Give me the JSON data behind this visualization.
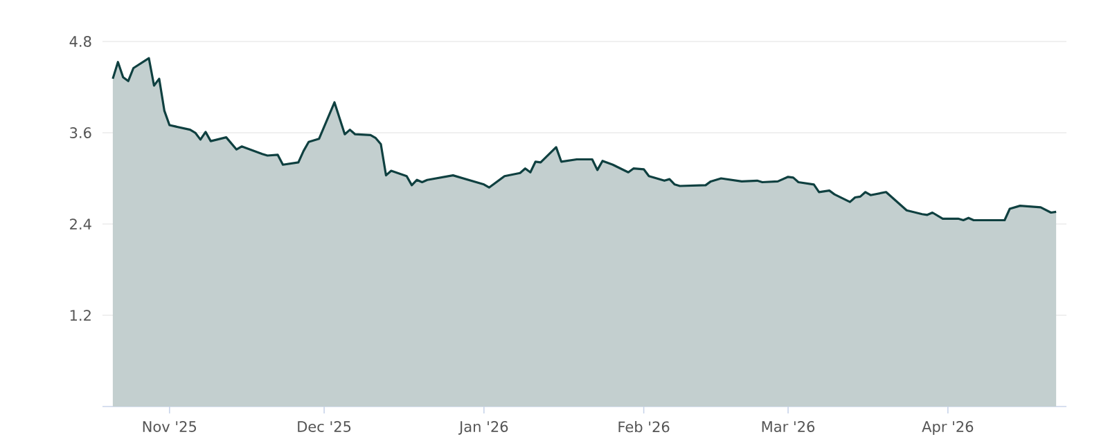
{
  "chart_data": {
    "type": "area",
    "x": [
      "2025-10-21",
      "2025-10-22",
      "2025-10-23",
      "2025-10-24",
      "2025-10-25",
      "2025-10-28",
      "2025-10-29",
      "2025-10-30",
      "2025-10-31",
      "2025-11-01",
      "2025-11-05",
      "2025-11-06",
      "2025-11-07",
      "2025-11-08",
      "2025-11-09",
      "2025-11-12",
      "2025-11-14",
      "2025-11-15",
      "2025-11-19",
      "2025-11-20",
      "2025-11-22",
      "2025-11-23",
      "2025-11-26",
      "2025-11-27",
      "2025-11-28",
      "2025-11-30",
      "2025-12-03",
      "2025-12-05",
      "2025-12-06",
      "2025-12-07",
      "2025-12-10",
      "2025-12-11",
      "2025-12-12",
      "2025-12-13",
      "2025-12-14",
      "2025-12-17",
      "2025-12-18",
      "2025-12-19",
      "2025-12-20",
      "2025-12-21",
      "2025-12-26",
      "2026-01-01",
      "2026-01-02",
      "2026-01-05",
      "2026-01-08",
      "2026-01-09",
      "2026-01-10",
      "2026-01-11",
      "2026-01-12",
      "2026-01-15",
      "2026-01-16",
      "2026-01-19",
      "2026-01-22",
      "2026-01-23",
      "2026-01-24",
      "2026-01-26",
      "2026-01-29",
      "2026-01-30",
      "2026-02-01",
      "2026-02-02",
      "2026-02-05",
      "2026-02-06",
      "2026-02-07",
      "2026-02-08",
      "2026-02-13",
      "2026-02-14",
      "2026-02-16",
      "2026-02-20",
      "2026-02-23",
      "2026-02-24",
      "2026-02-27",
      "2026-03-01",
      "2026-03-02",
      "2026-03-03",
      "2026-03-06",
      "2026-03-07",
      "2026-03-09",
      "2026-03-10",
      "2026-03-13",
      "2026-03-14",
      "2026-03-15",
      "2026-03-16",
      "2026-03-17",
      "2026-03-20",
      "2026-03-22",
      "2026-03-24",
      "2026-03-27",
      "2026-03-28",
      "2026-03-29",
      "2026-03-31",
      "2026-04-03",
      "2026-04-04",
      "2026-04-05",
      "2026-04-06",
      "2026-04-12",
      "2026-04-13",
      "2026-04-15",
      "2026-04-19",
      "2026-04-21",
      "2026-04-22"
    ],
    "series": [
      {
        "color": "#0f4040",
        "values": [
          4.31,
          4.53,
          4.33,
          4.28,
          4.45,
          4.58,
          4.22,
          4.31,
          3.89,
          3.7,
          3.64,
          3.6,
          3.51,
          3.61,
          3.49,
          3.54,
          3.38,
          3.42,
          3.32,
          3.3,
          3.31,
          3.18,
          3.21,
          3.36,
          3.48,
          3.52,
          4.0,
          3.58,
          3.64,
          3.58,
          3.57,
          3.53,
          3.45,
          3.04,
          3.1,
          3.03,
          2.91,
          2.98,
          2.95,
          2.98,
          3.04,
          2.92,
          2.88,
          3.03,
          3.07,
          3.13,
          3.08,
          3.22,
          3.21,
          3.41,
          3.22,
          3.25,
          3.25,
          3.11,
          3.23,
          3.18,
          3.08,
          3.13,
          3.12,
          3.03,
          2.97,
          2.99,
          2.92,
          2.9,
          2.91,
          2.96,
          3.0,
          2.96,
          2.97,
          2.95,
          2.96,
          3.02,
          3.01,
          2.95,
          2.92,
          2.82,
          2.84,
          2.79,
          2.69,
          2.75,
          2.76,
          2.82,
          2.78,
          2.82,
          2.7,
          2.58,
          2.53,
          2.52,
          2.55,
          2.47,
          2.47,
          2.45,
          2.48,
          2.45,
          2.45,
          2.6,
          2.64,
          2.62,
          2.55,
          2.56
        ]
      }
    ],
    "xlim": [
      "2025-10-19",
      "2026-04-24"
    ],
    "xticks": [
      {
        "value": "2025-11-01",
        "label": "Nov '25"
      },
      {
        "value": "2025-12-01",
        "label": "Dec '25"
      },
      {
        "value": "2026-01-01",
        "label": "Jan '26"
      },
      {
        "value": "2026-02-01",
        "label": "Feb '26"
      },
      {
        "value": "2026-03-01",
        "label": "Mar '26"
      },
      {
        "value": "2026-04-01",
        "label": "Apr '26"
      }
    ],
    "ylim": [
      0,
      4.8
    ],
    "yticks": [
      1.2,
      2.4,
      3.6,
      4.8
    ],
    "grid": "y"
  }
}
